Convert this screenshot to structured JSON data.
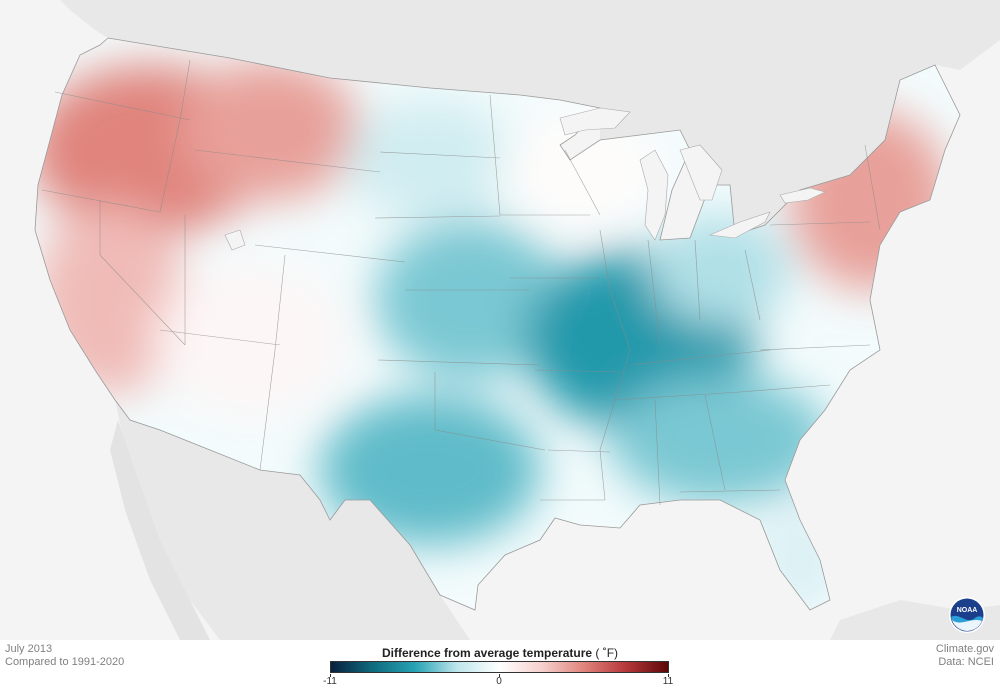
{
  "footer": {
    "period": "July 2013",
    "baseline": "Compared to 1991-2020",
    "source": "Climate.gov",
    "data": "Data: NCEI"
  },
  "legend": {
    "title": "Difference from average temperature",
    "unit": "( ˚F)",
    "min_label": "-11",
    "mid_label": "0",
    "max_label": "11",
    "min": -11,
    "max": 11,
    "colors": [
      "#08203f",
      "#0e6c7e",
      "#27a3b5",
      "#bfe6ec",
      "#ffffff",
      "#f6d0cd",
      "#e0847d",
      "#b6373a",
      "#5c0808"
    ]
  },
  "logo": {
    "text": "NOAA",
    "icon": "noaa-logo-icon"
  },
  "map": {
    "land_color": "#e8e8e8",
    "ocean_color": "#f4f4f4",
    "anomaly_regions": [
      {
        "name": "northwest",
        "anomaly": 5.5
      },
      {
        "name": "california-great-basin",
        "anomaly": 3.5
      },
      {
        "name": "northern-rockies",
        "anomaly": 4.5
      },
      {
        "name": "northeast",
        "anomaly": 4.5
      },
      {
        "name": "southwest",
        "anomaly": 0.5
      },
      {
        "name": "northern-plains",
        "anomaly": -2.0
      },
      {
        "name": "central-plains",
        "anomaly": -4.0
      },
      {
        "name": "mid-south",
        "anomaly": -6.0
      },
      {
        "name": "texas",
        "anomaly": -4.5
      },
      {
        "name": "southeast",
        "anomaly": -4.0
      },
      {
        "name": "florida",
        "anomaly": -1.5
      },
      {
        "name": "ohio-valley",
        "anomaly": -3.0
      },
      {
        "name": "upper-midwest",
        "anomaly": 0.2
      }
    ]
  }
}
